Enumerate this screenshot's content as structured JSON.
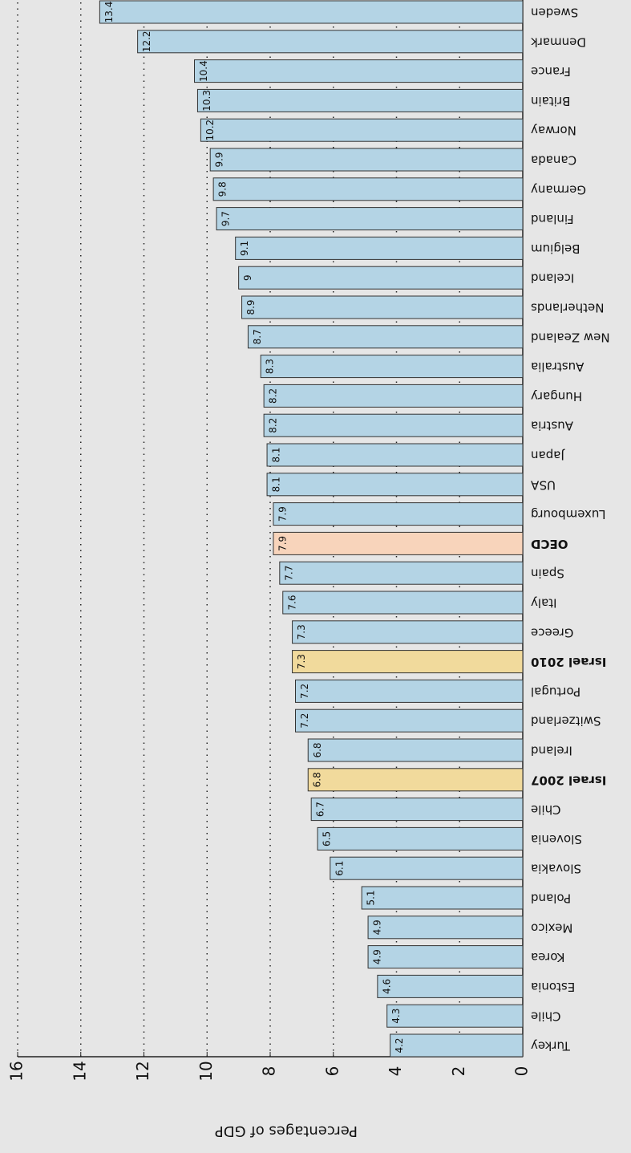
{
  "chart_data": {
    "type": "barh",
    "xlabel": "Percentages of GDP",
    "categories": [
      "Turkey",
      "Chile",
      "Estonia",
      "Korea",
      "Mexico",
      "Poland",
      "Slovakia",
      "Slovenia",
      "Chile",
      "Israel 2007",
      "Ireland",
      "Switzerland",
      "Portugal",
      "Israel 2010",
      "Greece",
      "Italy",
      "Spain",
      "OECD",
      "Luxembourg",
      "USA",
      "Japan",
      "Austria",
      "Hungary",
      "Australia",
      "New Zealand",
      "Netherlands",
      "Iceland",
      "Belgium",
      "Finland",
      "Germany",
      "Canada",
      "Norway",
      "Britain",
      "France",
      "Denmark",
      "Sweden"
    ],
    "values": [
      4.2,
      4.3,
      4.6,
      4.9,
      4.9,
      5.1,
      6.1,
      6.5,
      6.7,
      6.8,
      6.8,
      7.2,
      7.2,
      7.3,
      7.3,
      7.6,
      7.7,
      7.9,
      7.9,
      8.1,
      8.1,
      8.2,
      8.2,
      8.3,
      8.7,
      8.9,
      9,
      9.1,
      9.7,
      9.8,
      9.9,
      10.2,
      10.3,
      10.4,
      12.2,
      13.4
    ],
    "colors": [
      "#b4d4e5",
      "#b4d4e5",
      "#b4d4e5",
      "#b4d4e5",
      "#b4d4e5",
      "#b4d4e5",
      "#b4d4e5",
      "#b4d4e5",
      "#b4d4e5",
      "#f1da9c",
      "#b4d4e5",
      "#b4d4e5",
      "#b4d4e5",
      "#f1da9c",
      "#b4d4e5",
      "#b4d4e5",
      "#b4d4e5",
      "#f8d4bb",
      "#b4d4e5",
      "#b4d4e5",
      "#b4d4e5",
      "#b4d4e5",
      "#b4d4e5",
      "#b4d4e5",
      "#b4d4e5",
      "#b4d4e5",
      "#b4d4e5",
      "#b4d4e5",
      "#b4d4e5",
      "#b4d4e5",
      "#b4d4e5",
      "#b4d4e5",
      "#b4d4e5",
      "#b4d4e5",
      "#b4d4e5",
      "#b4d4e5"
    ],
    "bold": [
      false,
      false,
      false,
      false,
      false,
      false,
      false,
      false,
      false,
      true,
      false,
      false,
      false,
      true,
      false,
      false,
      false,
      true,
      false,
      false,
      false,
      false,
      false,
      false,
      false,
      false,
      false,
      false,
      false,
      false,
      false,
      false,
      false,
      false,
      false,
      false
    ],
    "xlim": [
      0,
      16
    ],
    "xticks": [
      0,
      2,
      4,
      6,
      8,
      10,
      12,
      14,
      16
    ],
    "grid": true,
    "rotated_180": true
  }
}
